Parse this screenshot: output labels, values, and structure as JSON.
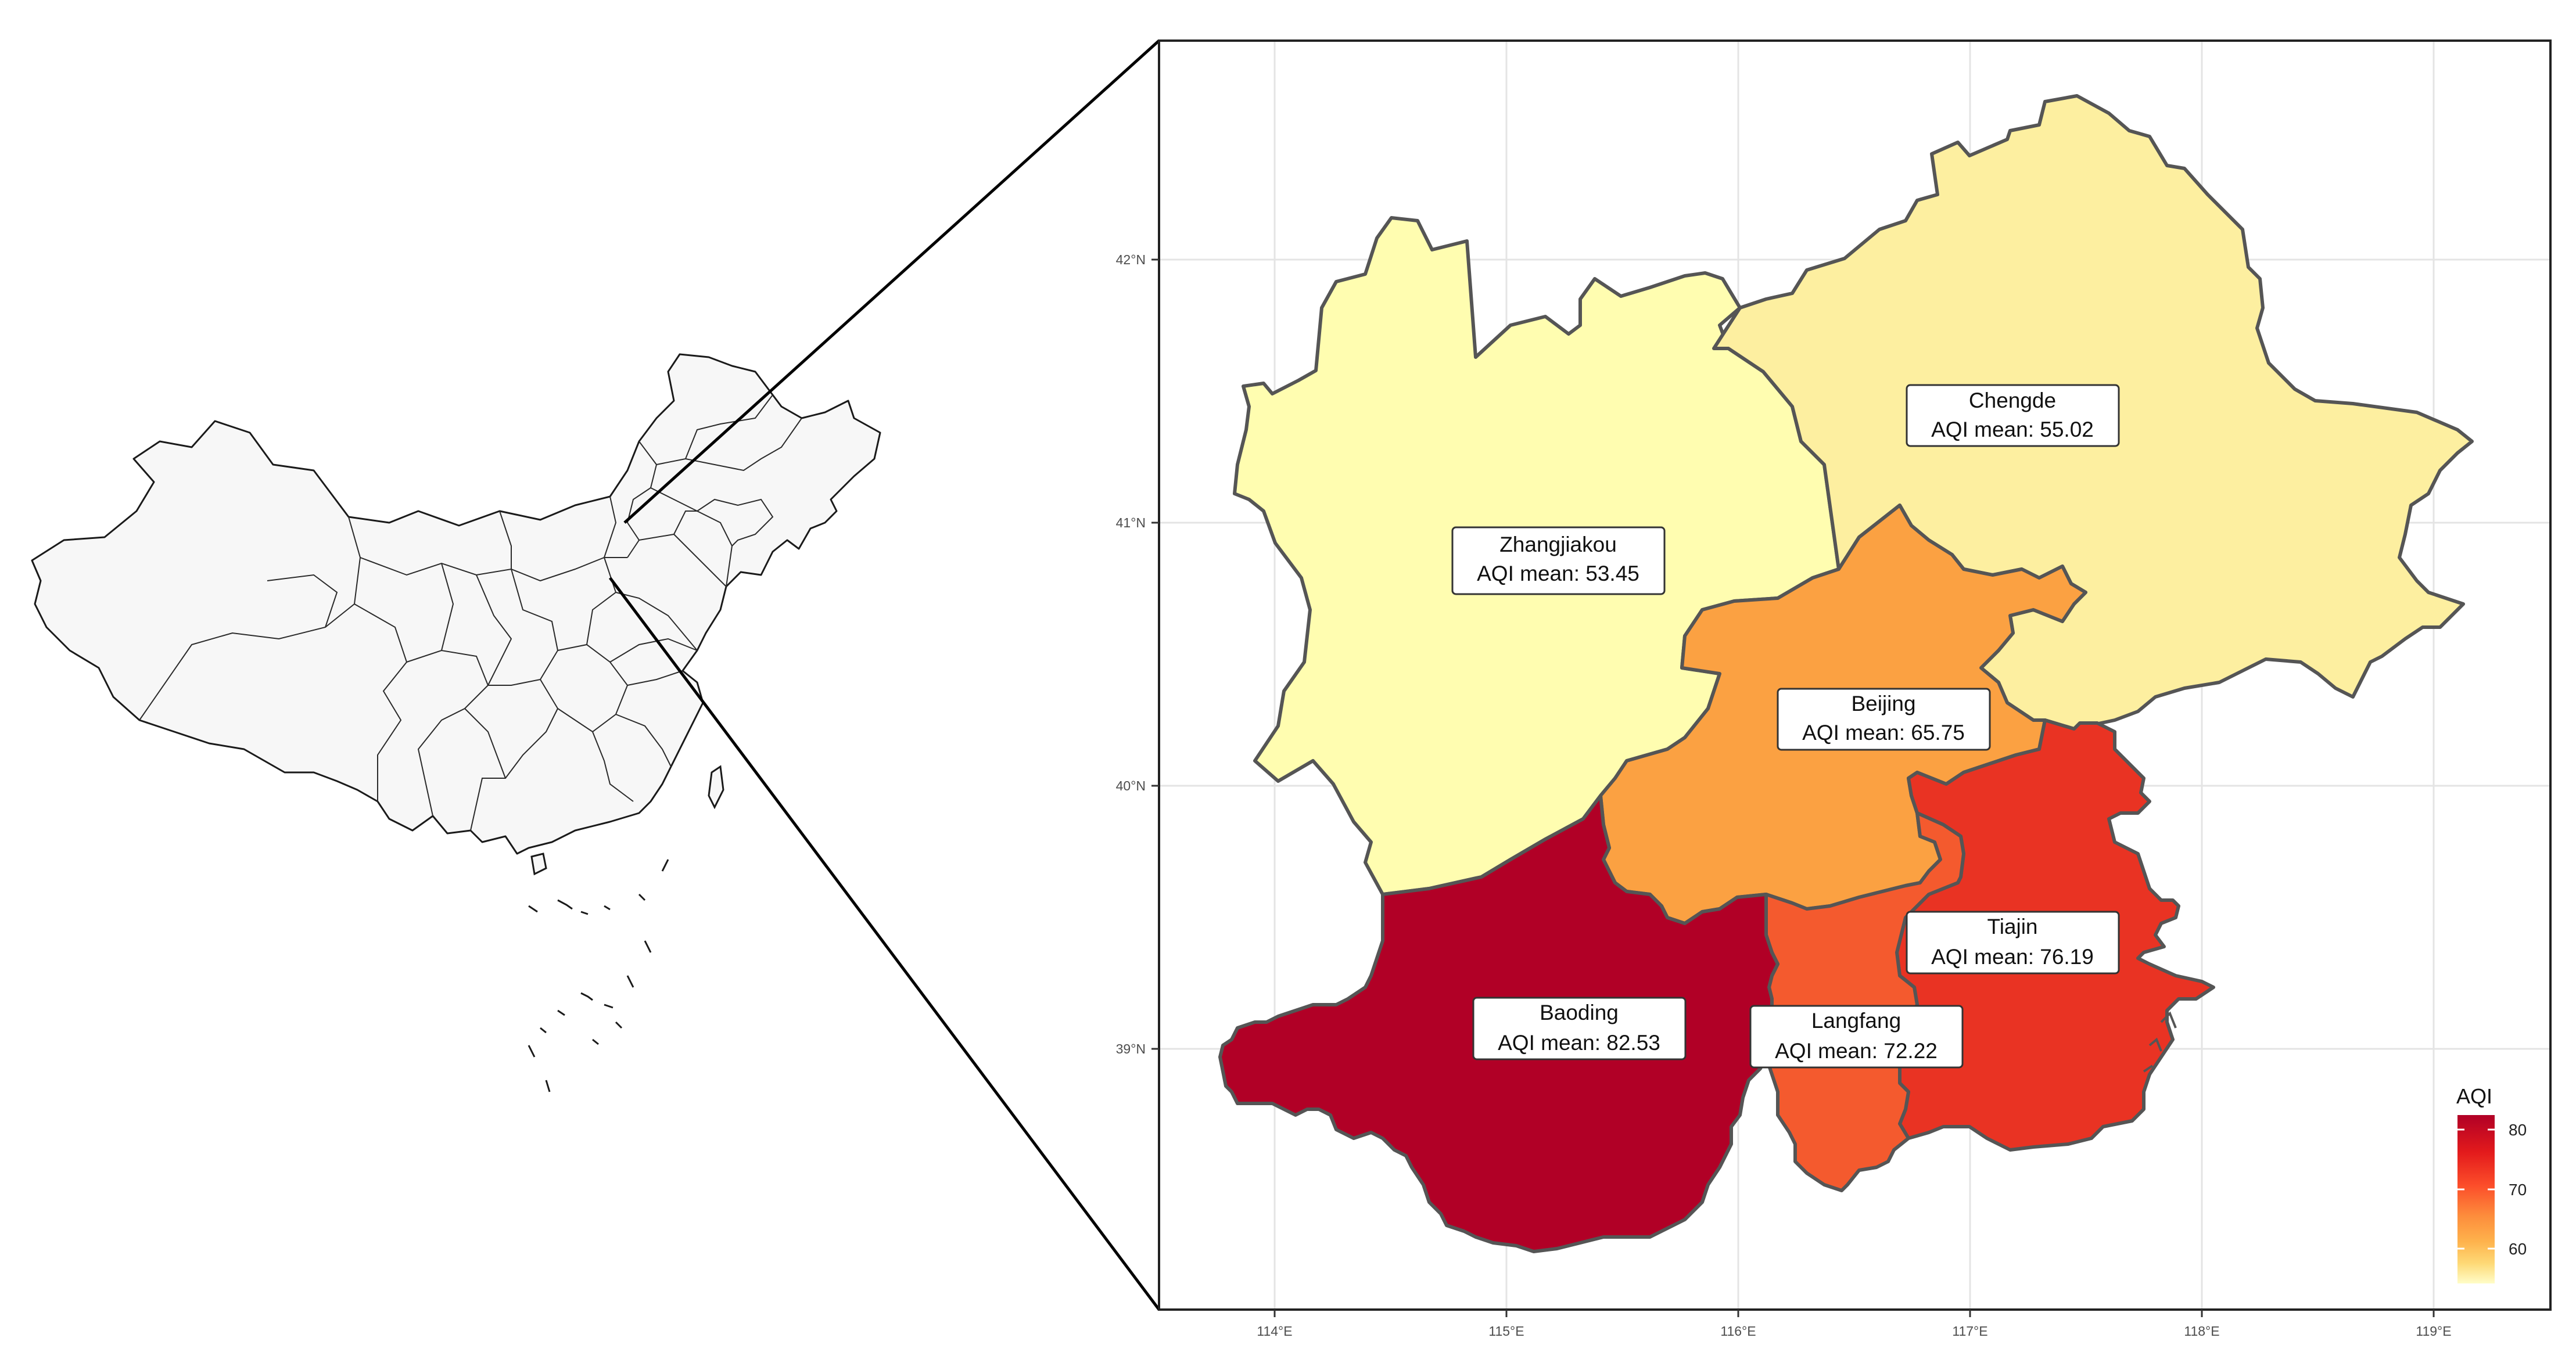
{
  "map": {
    "axes": {
      "x_ticks": [
        "114°E",
        "115°E",
        "116°E",
        "117°E",
        "118°E",
        "119°E"
      ],
      "y_ticks": [
        "42°N",
        "41°N",
        "40°N",
        "39°N"
      ]
    },
    "regions": [
      {
        "name": "Zhangjiakou",
        "aqi_label": "AQI mean: 53.45",
        "aqi_mean": 53.45,
        "color": "#FFFDB0"
      },
      {
        "name": "Chengde",
        "aqi_label": "AQI mean: 55.02",
        "aqi_mean": 55.02,
        "color": "#FDEFA0"
      },
      {
        "name": "Beijing",
        "aqi_label": "AQI mean: 65.75",
        "aqi_mean": 65.75,
        "color": "#FBA142"
      },
      {
        "name": "Tiajin",
        "aqi_label": "AQI mean: 76.19",
        "aqi_mean": 76.19,
        "color": "#E93323"
      },
      {
        "name": "Langfang",
        "aqi_label": "AQI mean: 72.22",
        "aqi_mean": 72.22,
        "color": "#F45A2E"
      },
      {
        "name": "Baoding",
        "aqi_label": "AQI mean: 82.53",
        "aqi_mean": 82.53,
        "color": "#B10026"
      }
    ],
    "legend": {
      "title": "AQI",
      "ticks": [
        "80",
        "70",
        "60"
      ],
      "scale": "yellow-orange-red",
      "colors": [
        "#B10026",
        "#E31A1C",
        "#FC4E2A",
        "#FD8D3C",
        "#FEB24C",
        "#FED976",
        "#FFEDA0",
        "#FFFFCC"
      ]
    }
  }
}
